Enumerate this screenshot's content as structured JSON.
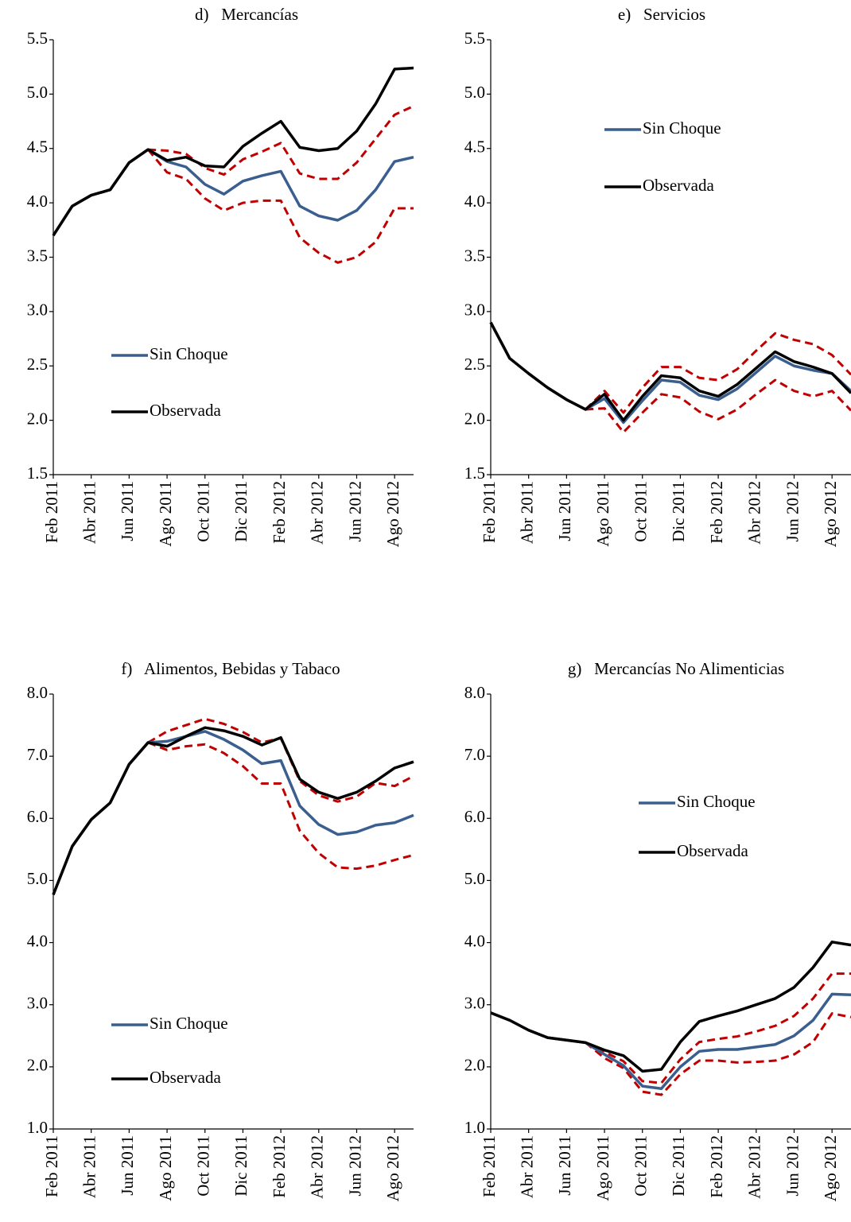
{
  "chart_data": [
    {
      "type": "line",
      "title": "d)   Mercancías",
      "categories": [
        "Feb 2011",
        null,
        "Abr 2011",
        null,
        "Jun 2011",
        null,
        "Ago 2011",
        null,
        "Oct 2011",
        null,
        "Dic 2011",
        null,
        "Feb 2012",
        null,
        "Abr 2012",
        null,
        "Jun 2012",
        null,
        "Ago 2012",
        null
      ],
      "ylim": [
        1.5,
        5.5
      ],
      "yticks": [
        1.5,
        {
          "value": 2,
          "label": "2.0"
        },
        2.5,
        {
          "value": 3,
          "label": "3.0"
        },
        3.5,
        {
          "value": 4,
          "label": "4.0"
        },
        4.5,
        {
          "value": 5,
          "label": "5.0"
        },
        5.5
      ],
      "series": [
        {
          "color": "#c00000",
          "style": "dashed",
          "values": [
            null,
            null,
            null,
            null,
            null,
            4.49,
            4.48,
            4.45,
            4.32,
            4.26,
            4.4,
            4.47,
            4.55,
            4.27,
            4.22,
            4.22,
            4.37,
            4.59,
            4.81,
            4.89
          ]
        },
        {
          "color": "#c00000",
          "style": "dashed",
          "values": [
            null,
            null,
            null,
            null,
            null,
            4.49,
            4.28,
            4.22,
            4.04,
            3.93,
            4.0,
            4.02,
            4.02,
            3.68,
            3.54,
            3.45,
            3.5,
            3.64,
            3.95,
            3.95
          ]
        },
        {
          "name": "Sin Choque",
          "color": "#3a5f8f",
          "style": "solid",
          "values": [
            3.7,
            3.97,
            4.07,
            4.12,
            4.37,
            4.49,
            4.38,
            4.33,
            4.17,
            4.08,
            4.2,
            4.25,
            4.29,
            3.97,
            3.88,
            3.84,
            3.93,
            4.12,
            4.38,
            4.42
          ]
        },
        {
          "name": "Observada",
          "color": "#000000",
          "style": "solid",
          "values": [
            3.7,
            3.97,
            4.07,
            4.12,
            4.37,
            4.49,
            4.39,
            4.42,
            4.34,
            4.33,
            4.52,
            4.64,
            4.75,
            4.51,
            4.48,
            4.5,
            4.66,
            4.91,
            5.23,
            5.24
          ]
        }
      ]
    },
    {
      "type": "line",
      "title": "e)   Servicios",
      "categories": [
        "Feb 2011",
        null,
        "Abr 2011",
        null,
        "Jun 2011",
        null,
        "Ago 2011",
        null,
        "Oct 2011",
        null,
        "Dic 2011",
        null,
        "Feb 2012",
        null,
        "Abr 2012",
        null,
        "Jun 2012",
        null,
        "Ago 2012",
        null
      ],
      "ylim": [
        1.5,
        5.5
      ],
      "yticks": [
        1.5,
        {
          "value": 2,
          "label": "2.0"
        },
        2.5,
        {
          "value": 3,
          "label": "3.0"
        },
        3.5,
        {
          "value": 4,
          "label": "4.0"
        },
        4.5,
        {
          "value": 5,
          "label": "5.0"
        },
        5.5
      ],
      "series": [
        {
          "color": "#c00000",
          "style": "dashed",
          "values": [
            null,
            null,
            null,
            null,
            null,
            2.1,
            2.27,
            2.07,
            2.3,
            2.49,
            2.49,
            2.39,
            2.37,
            2.47,
            2.64,
            2.8,
            2.74,
            2.7,
            2.6,
            2.42
          ]
        },
        {
          "color": "#c00000",
          "style": "dashed",
          "values": [
            null,
            null,
            null,
            null,
            null,
            2.1,
            2.11,
            1.89,
            2.07,
            2.24,
            2.21,
            2.08,
            2.01,
            2.1,
            2.24,
            2.37,
            2.27,
            2.22,
            2.27,
            2.09
          ]
        },
        {
          "name": "Sin Choque",
          "color": "#3a5f8f",
          "style": "solid",
          "values": [
            2.9,
            2.57,
            2.43,
            2.3,
            2.19,
            2.1,
            2.2,
            1.98,
            2.18,
            2.37,
            2.35,
            2.23,
            2.19,
            2.29,
            2.44,
            2.59,
            2.5,
            2.46,
            2.43,
            2.27
          ]
        },
        {
          "name": "Observada",
          "color": "#000000",
          "style": "solid",
          "values": [
            2.9,
            2.57,
            2.43,
            2.3,
            2.19,
            2.1,
            2.24,
            2.0,
            2.22,
            2.41,
            2.39,
            2.27,
            2.22,
            2.33,
            2.48,
            2.63,
            2.54,
            2.49,
            2.43,
            2.25
          ]
        }
      ]
    },
    {
      "type": "line",
      "title": "f)   Alimentos, Bebidas y Tabaco",
      "categories": [
        "Feb 2011",
        null,
        "Abr 2011",
        null,
        "Jun 2011",
        null,
        "Ago 2011",
        null,
        "Oct 2011",
        null,
        "Dic 2011",
        null,
        "Feb 2012",
        null,
        "Abr 2012",
        null,
        "Jun 2012",
        null,
        "Ago 2012",
        null
      ],
      "ylim": [
        1,
        8
      ],
      "yticks": [
        {
          "value": 1,
          "label": "1.0"
        },
        {
          "value": 2,
          "label": "2.0"
        },
        {
          "value": 3,
          "label": "3.0"
        },
        {
          "value": 4,
          "label": "4.0"
        },
        {
          "value": 5,
          "label": "5.0"
        },
        {
          "value": 6,
          "label": "6.0"
        },
        {
          "value": 7,
          "label": "7.0"
        },
        {
          "value": 8,
          "label": "8.0"
        }
      ],
      "series": [
        {
          "color": "#c00000",
          "style": "dashed",
          "values": [
            null,
            null,
            null,
            null,
            null,
            7.22,
            7.4,
            7.5,
            7.6,
            7.52,
            7.39,
            7.22,
            7.29,
            6.6,
            6.37,
            6.27,
            6.35,
            6.57,
            6.52,
            6.68
          ]
        },
        {
          "color": "#c00000",
          "style": "dashed",
          "values": [
            null,
            null,
            null,
            null,
            null,
            7.22,
            7.1,
            7.16,
            7.19,
            7.05,
            6.84,
            6.56,
            6.56,
            5.8,
            5.44,
            5.21,
            5.19,
            5.24,
            5.33,
            5.41
          ]
        },
        {
          "name": "Sin Choque",
          "color": "#3a5f8f",
          "style": "solid",
          "values": [
            4.77,
            5.55,
            5.98,
            6.25,
            6.87,
            7.22,
            7.24,
            7.32,
            7.4,
            7.27,
            7.1,
            6.88,
            6.93,
            6.2,
            5.9,
            5.74,
            5.78,
            5.89,
            5.93,
            6.05
          ]
        },
        {
          "name": "Observada",
          "color": "#000000",
          "style": "solid",
          "values": [
            4.77,
            5.55,
            5.98,
            6.25,
            6.87,
            7.22,
            7.16,
            7.32,
            7.46,
            7.41,
            7.32,
            7.18,
            7.3,
            6.63,
            6.42,
            6.32,
            6.42,
            6.6,
            6.81,
            6.91
          ]
        }
      ]
    },
    {
      "type": "line",
      "title": "g)   Mercancías No Alimenticias",
      "categories": [
        "Feb 2011",
        null,
        "Abr 2011",
        null,
        "Jun 2011",
        null,
        "Ago 2011",
        null,
        "Oct 2011",
        null,
        "Dic 2011",
        null,
        "Feb 2012",
        null,
        "Abr 2012",
        null,
        "Jun 2012",
        null,
        "Ago 2012",
        null
      ],
      "ylim": [
        1,
        8
      ],
      "yticks": [
        {
          "value": 1,
          "label": "1.0"
        },
        {
          "value": 2,
          "label": "2.0"
        },
        {
          "value": 3,
          "label": "3.0"
        },
        {
          "value": 4,
          "label": "4.0"
        },
        {
          "value": 5,
          "label": "5.0"
        },
        {
          "value": 6,
          "label": "6.0"
        },
        {
          "value": 7,
          "label": "7.0"
        },
        {
          "value": 8,
          "label": "8.0"
        }
      ],
      "series": [
        {
          "color": "#c00000",
          "style": "dashed",
          "values": [
            null,
            null,
            null,
            null,
            null,
            2.39,
            2.24,
            2.09,
            1.77,
            1.74,
            2.12,
            2.4,
            2.45,
            2.49,
            2.57,
            2.66,
            2.82,
            3.1,
            3.5,
            3.5
          ]
        },
        {
          "color": "#c00000",
          "style": "dashed",
          "values": [
            null,
            null,
            null,
            null,
            null,
            2.39,
            2.14,
            1.98,
            1.6,
            1.55,
            1.88,
            2.1,
            2.1,
            2.07,
            2.08,
            2.1,
            2.2,
            2.4,
            2.86,
            2.8
          ]
        },
        {
          "name": "Sin Choque",
          "color": "#3a5f8f",
          "style": "solid",
          "values": [
            2.87,
            2.75,
            2.59,
            2.47,
            2.43,
            2.39,
            2.2,
            2.02,
            1.69,
            1.65,
            2.0,
            2.25,
            2.28,
            2.28,
            2.32,
            2.36,
            2.5,
            2.75,
            3.17,
            3.16
          ]
        },
        {
          "name": "Observada",
          "color": "#000000",
          "style": "solid",
          "values": [
            2.87,
            2.75,
            2.59,
            2.47,
            2.43,
            2.39,
            2.27,
            2.18,
            1.93,
            1.96,
            2.4,
            2.73,
            2.82,
            2.9,
            3.0,
            3.1,
            3.28,
            3.6,
            4.01,
            3.96
          ]
        }
      ]
    }
  ]
}
